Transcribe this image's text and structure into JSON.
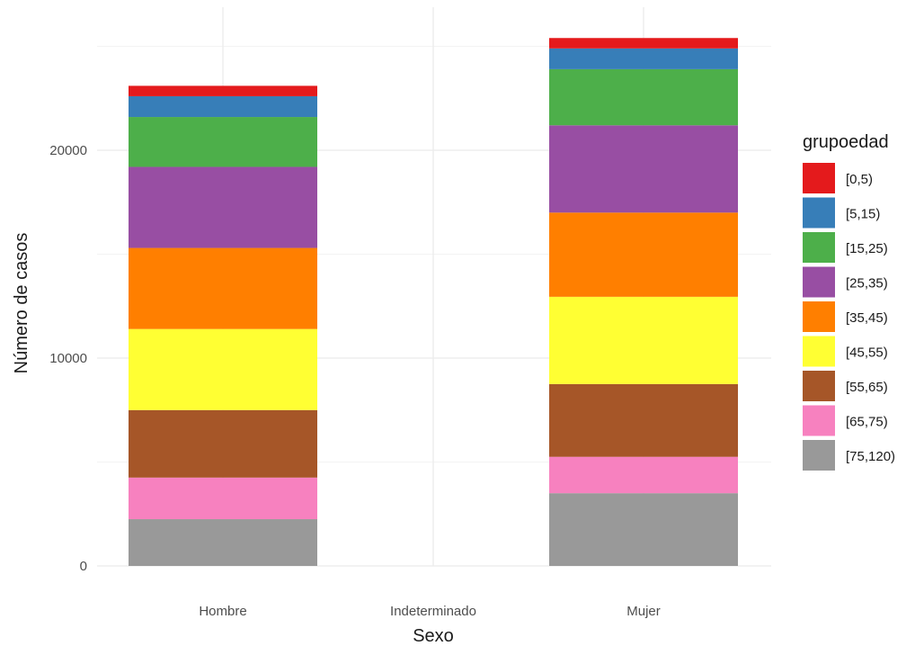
{
  "chart_data": {
    "type": "bar",
    "stacked": true,
    "title": "",
    "xlabel": "Sexo",
    "ylabel": "Número de casos",
    "categories": [
      "Hombre",
      "Indeterminado",
      "Mujer"
    ],
    "ylim": [
      0,
      25500
    ],
    "yticks": [
      0,
      10000,
      20000
    ],
    "ytick_labels": [
      "0",
      "10000",
      "20000"
    ],
    "grid": true,
    "legend": {
      "title": "grupoedad",
      "position": "right"
    },
    "series": [
      {
        "name": "[75,120)",
        "color": "#999999",
        "values": [
          2250,
          0,
          3500
        ]
      },
      {
        "name": "[65,75)",
        "color": "#F781BF",
        "values": [
          2000,
          0,
          1750
        ]
      },
      {
        "name": "[55,65)",
        "color": "#A65628",
        "values": [
          3250,
          0,
          3500
        ]
      },
      {
        "name": "[45,55)",
        "color": "#FFFF33",
        "values": [
          3900,
          0,
          4200
        ]
      },
      {
        "name": "[35,45)",
        "color": "#FF7F00",
        "values": [
          3900,
          0,
          4050
        ]
      },
      {
        "name": "[25,35)",
        "color": "#984EA3",
        "values": [
          3900,
          0,
          4200
        ]
      },
      {
        "name": "[15,25)",
        "color": "#4DAF4A",
        "values": [
          2400,
          0,
          2700
        ]
      },
      {
        "name": "[5,15)",
        "color": "#377EB8",
        "values": [
          1000,
          0,
          1000
        ]
      },
      {
        "name": "[0,5)",
        "color": "#E41A1C",
        "values": [
          500,
          0,
          500
        ]
      }
    ]
  }
}
